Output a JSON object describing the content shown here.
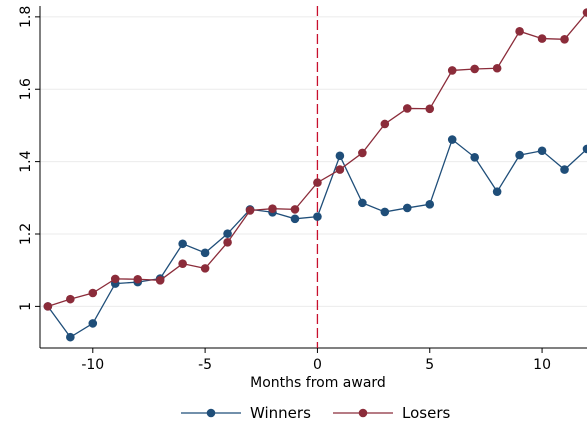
{
  "chart_data": {
    "type": "line",
    "title": "",
    "xlabel": "Months from award",
    "ylabel": "",
    "x": [
      -12,
      -11,
      -10,
      -9,
      -8,
      -7,
      -6,
      -5,
      -4,
      -3,
      -2,
      -1,
      0,
      1,
      2,
      3,
      4,
      5,
      6,
      7,
      8,
      9,
      10,
      11,
      12
    ],
    "series": [
      {
        "name": "Winners",
        "color": "#1f4e79",
        "values": [
          1.0,
          0.915,
          0.953,
          1.063,
          1.067,
          1.077,
          1.173,
          1.148,
          1.201,
          1.268,
          1.26,
          1.242,
          1.248,
          1.416,
          1.286,
          1.261,
          1.272,
          1.282,
          1.461,
          1.412,
          1.317,
          1.418,
          1.43,
          1.378,
          1.435
        ]
      },
      {
        "name": "Losers",
        "color": "#8b2c3a",
        "values": [
          1.0,
          1.02,
          1.037,
          1.076,
          1.075,
          1.072,
          1.118,
          1.105,
          1.177,
          1.265,
          1.27,
          1.268,
          1.342,
          1.378,
          1.424,
          1.504,
          1.547,
          1.546,
          1.652,
          1.656,
          1.658,
          1.76,
          1.74,
          1.738,
          1.812
        ]
      }
    ],
    "xticks": [
      -10,
      -5,
      0,
      5,
      10
    ],
    "xtick_labels": [
      "-10",
      "-5",
      "0",
      "5",
      "10"
    ],
    "yticks": [
      1.0,
      1.2,
      1.4,
      1.6,
      1.8
    ],
    "ytick_labels": [
      "1",
      "1.2",
      "1.4",
      "1.6",
      "1.8"
    ],
    "xlim": [
      -12.35,
      12.0
    ],
    "ylim": [
      0.885,
      1.83
    ],
    "grid": true,
    "reference_line": {
      "x": 0,
      "color": "#c8102e",
      "style": "dashed"
    },
    "legend": {
      "placement": "bottom"
    }
  }
}
